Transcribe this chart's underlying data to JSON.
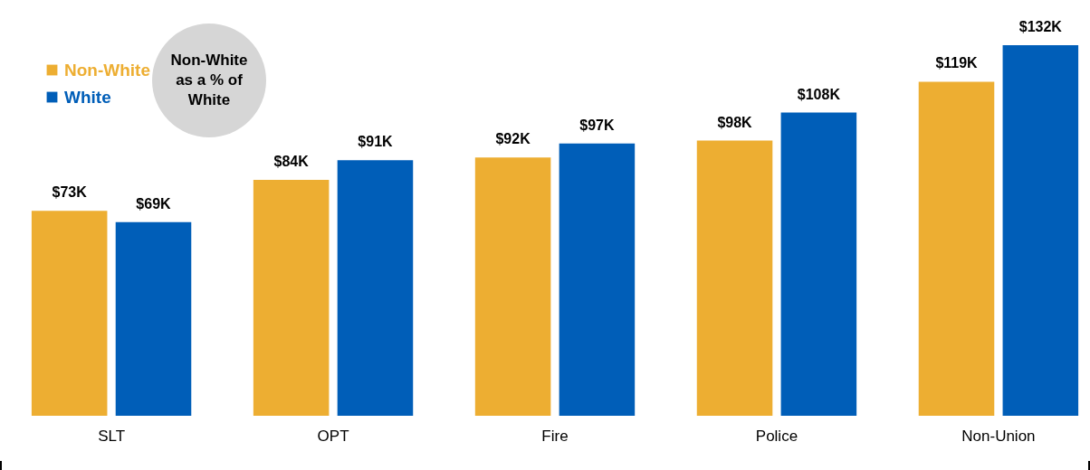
{
  "chart_data": {
    "type": "bar",
    "categories": [
      "SLT",
      "OPT",
      "Fire",
      "Police",
      "Non-Union"
    ],
    "series": [
      {
        "name": "Non-White",
        "color": "#edae32",
        "values": [
          73,
          84,
          92,
          98,
          119
        ],
        "value_labels": [
          "$73K",
          "$84K",
          "$92K",
          "$98K",
          "$119K"
        ]
      },
      {
        "name": "White",
        "color": "#005eb8",
        "values": [
          69,
          91,
          97,
          108,
          132
        ],
        "value_labels": [
          "$69K",
          "$91K",
          "$97K",
          "$108K",
          "$132K"
        ]
      }
    ],
    "legend": "top left",
    "grid": false,
    "annotations": [
      "Non-White as a % of White"
    ]
  }
}
